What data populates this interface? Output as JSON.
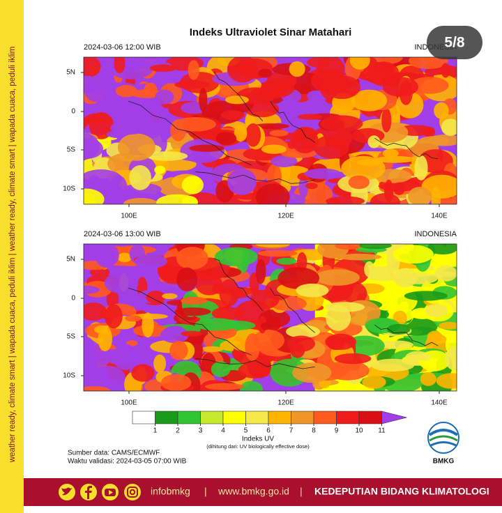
{
  "title": "Indeks Ultraviolet Sinar Matahari",
  "pagination": "5/8",
  "side_text": "weather ready, climate smart  |  wapada cuaca, peduli iklim  |  weather ready, climate smart  |  wapada cuaca, peduli iklim",
  "panels": [
    {
      "timestamp": "2024-03-06  12:00 WIB",
      "region": "INDONESIA",
      "lat_labels": [
        "5N",
        "0",
        "5S",
        "10S"
      ],
      "lon_labels": [
        "100E",
        "120E",
        "140E"
      ]
    },
    {
      "timestamp": "2024-03-06  13:00 WIB",
      "region": "INDONESIA",
      "lat_labels": [
        "5N",
        "0",
        "5S",
        "10S"
      ],
      "lon_labels": [
        "100E",
        "120E",
        "140E"
      ]
    }
  ],
  "colorbar": {
    "label": "Indeks UV",
    "note": "(dihitung dari: UV biologically effective dose)",
    "ticks": [
      1,
      2,
      3,
      4,
      5,
      6,
      7,
      8,
      9,
      10,
      11
    ],
    "colors": [
      "#ffffff",
      "#1a9a1a",
      "#33c433",
      "#c8e830",
      "#ffff00",
      "#f4e84a",
      "#ffb400",
      "#f09628",
      "#ff5a1e",
      "#ee1c1c",
      "#d80f14",
      "#a23ee8"
    ]
  },
  "source": "Sumber data: CAMS/ECMWF",
  "validity": "Waktu validasi: 2024-03-05 07:00 WIB",
  "logo": "BMKG",
  "footer": {
    "handle": "infobmkg",
    "separator": "|",
    "website": "www.bmkg.go.id",
    "department": "KEDEPUTIAN BIDANG KLIMATOLOGI"
  }
}
